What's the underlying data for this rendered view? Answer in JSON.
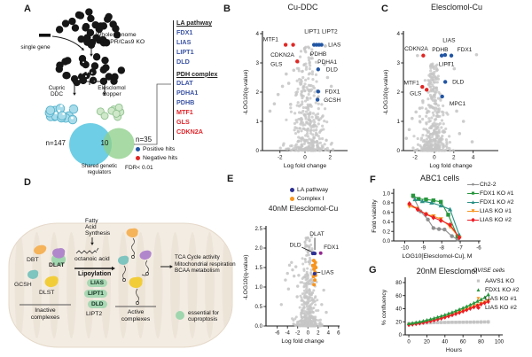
{
  "panelA": {
    "letter": "A",
    "single_gene": "single gene",
    "whole_genome_line1": "Whole genome",
    "whole_genome_line2": "CRISPR/Cas9 KO",
    "arm_left_line1": "Cupric",
    "arm_left_line2": "DDC",
    "arm_right_line1": "Elesclomol",
    "arm_right_line2": "Copper",
    "venn": {
      "left_count": "n=147",
      "overlap_count": "10",
      "right_count": "n=35",
      "caption_line1": "Shared genetic",
      "caption_line2": "regulators",
      "fdr": "FDR< 0.01",
      "left_color": "#5ec9e2",
      "right_color": "#8ed08a"
    },
    "gene_list": {
      "la_header": "LA pathway",
      "la_genes": [
        "FDX1",
        "LIAS",
        "LIPT1",
        "DLD"
      ],
      "pdh_header": "PDH complex",
      "pdh_genes": [
        "DLAT",
        "PDHA1",
        "PDHB"
      ],
      "negative_genes": [
        "MTF1",
        "GLS",
        "CDKN2A"
      ]
    },
    "hit_legend": {
      "positive": "Positive hits",
      "negative": "Negative hits",
      "positive_color": "#2155a3",
      "negative_color": "#e02724"
    }
  },
  "panelD": {
    "letter": "D",
    "complex_labels": {
      "dbt": "DBT",
      "dlat": "DLAT",
      "gcsh": "GCSH",
      "dlst": "DLST"
    },
    "fatty_line1": "Fatty",
    "fatty_line2": "Acid",
    "fatty_line3": "Synthesis",
    "octanoic": "octanoic acid",
    "lipoylation": "Lipoylation",
    "lipoyl_genes": [
      "LIAS",
      "LIPT1",
      "DLD"
    ],
    "lipt2": "LIPT2",
    "inactive_line1": "Inactive",
    "inactive_line2": "complexes",
    "active_line1": "Active",
    "active_line2": "complexes",
    "outcome_line1": "TCA Cycle activity",
    "outcome_line2": "Mitochondrial respiration",
    "outcome_line3": "BCAA metabolism",
    "legend_line1": "essential for",
    "legend_line2": "cuproptosis",
    "essential_color": "#9fd6ae"
  },
  "chart_data": [
    {
      "panel_letter": "B",
      "type": "scatter",
      "subtype": "volcano",
      "title": "Cu-DDC",
      "xlabel": "Log fold change",
      "ylabel": "-LOG10(q-value)",
      "xlim": [
        -3.4,
        3.4
      ],
      "ylim": [
        0,
        4
      ],
      "xticks": [
        -2,
        0,
        2
      ],
      "yticks": [
        0,
        1,
        2,
        3,
        4
      ],
      "colors": {
        "positive": "#2155a3",
        "negative": "#e02724",
        "background": "#c6c6c6"
      },
      "hits": [
        {
          "gene": "MTF1",
          "x": -1.55,
          "y": 3.62,
          "cat": "negative"
        },
        {
          "gene": "GLS",
          "x": -0.95,
          "y": 3.62,
          "cat": "negative"
        },
        {
          "gene": "CDKN2A",
          "x": -0.62,
          "y": 3.05,
          "cat": "negative"
        },
        {
          "gene": "LIPT1",
          "x": 0.72,
          "y": 3.62,
          "cat": "positive"
        },
        {
          "gene": "LIPT2",
          "x": 0.92,
          "y": 3.62,
          "cat": "positive"
        },
        {
          "gene": "PDHB",
          "x": 1.12,
          "y": 3.62,
          "cat": "positive"
        },
        {
          "gene": "PDHA1",
          "x": 1.32,
          "y": 3.62,
          "cat": "positive"
        },
        {
          "gene": "LIAS",
          "x": 1.62,
          "y": 3.58,
          "cat": "background"
        },
        {
          "gene": "DLD",
          "x": 1.05,
          "y": 2.78,
          "cat": "positive"
        },
        {
          "gene": "FDX1",
          "x": 1.05,
          "y": 2.02,
          "cat": "positive"
        },
        {
          "gene": "GCSH",
          "x": 1.0,
          "y": 1.74,
          "cat": "positive"
        }
      ],
      "labels": [
        {
          "text": "MTF1",
          "x": -3.35,
          "y": 3.8
        },
        {
          "text": "CDKN2A",
          "x": -2.75,
          "y": 3.28
        },
        {
          "text": "GLS",
          "x": -2.75,
          "y": 2.96
        },
        {
          "text": "LIPT1",
          "x": -0.05,
          "y": 4.08
        },
        {
          "text": "LIPT2",
          "x": 1.35,
          "y": 4.08
        },
        {
          "text": "LIAS",
          "x": 1.85,
          "y": 3.62
        },
        {
          "text": "PDHB",
          "x": 0.42,
          "y": 3.3
        },
        {
          "text": "PDHA1",
          "x": 1.0,
          "y": 3.03
        },
        {
          "text": "DLD",
          "x": 1.68,
          "y": 2.78
        },
        {
          "text": "FDX1",
          "x": 1.6,
          "y": 2.02
        },
        {
          "text": "GCSH",
          "x": 1.5,
          "y": 1.72
        }
      ],
      "extra_background": [
        [
          -2.15,
          1.92
        ],
        [
          -1.8,
          2.2
        ],
        [
          -2.45,
          1.6
        ],
        [
          -1.5,
          2.62
        ],
        [
          -1.15,
          1.58
        ],
        [
          -2.8,
          1.35
        ],
        [
          1.55,
          2.95
        ],
        [
          1.8,
          2.5
        ],
        [
          2.1,
          2.2
        ],
        [
          -0.9,
          2.75
        ],
        [
          -1.3,
          2.3
        ]
      ],
      "background_cloud": {
        "seed": 7,
        "count": 360,
        "x_spread": 1.05,
        "x_shift": 0.18,
        "y_pow": 2.1,
        "y_max": 3.55
      }
    },
    {
      "panel_letter": "C",
      "type": "scatter",
      "subtype": "volcano",
      "title": "Elesclomol-Cu",
      "xlabel": "Log fold change",
      "ylabel": "-LOG10(q-value)",
      "xlim": [
        -3.2,
        6.6
      ],
      "ylim": [
        0,
        4
      ],
      "xticks": [
        -2,
        0,
        2,
        4
      ],
      "yticks": [
        0,
        1,
        2,
        3,
        4
      ],
      "colors": {
        "positive": "#2155a3",
        "negative": "#e02724",
        "background": "#c6c6c6"
      },
      "hits": [
        {
          "gene": "CDKN2A",
          "x": -1.15,
          "y": 3.25,
          "cat": "negative"
        },
        {
          "gene": "PDHB",
          "x": 0.75,
          "y": 3.25,
          "cat": "positive"
        },
        {
          "gene": "LIAS",
          "x": 1.1,
          "y": 3.27,
          "cat": "positive"
        },
        {
          "gene": "FDX1",
          "x": 1.75,
          "y": 3.25,
          "cat": "positive"
        },
        {
          "gene": "MTF1",
          "x": -1.25,
          "y": 2.18,
          "cat": "negative"
        },
        {
          "gene": "GLS",
          "x": -0.8,
          "y": 2.08,
          "cat": "negative"
        },
        {
          "gene": "DLD",
          "x": 1.12,
          "y": 2.35,
          "cat": "positive"
        },
        {
          "gene": "MPC1",
          "x": 0.8,
          "y": 1.85,
          "cat": "positive"
        }
      ],
      "labels": [
        {
          "text": "CDKN2A",
          "x": -3.1,
          "y": 3.48
        },
        {
          "text": "LIAS",
          "x": 0.85,
          "y": 3.78
        },
        {
          "text": "PDHB",
          "x": -0.25,
          "y": 3.46
        },
        {
          "text": "FDX1",
          "x": 2.35,
          "y": 3.46
        },
        {
          "text": "LIPT1",
          "x": 0.45,
          "y": 2.95
        },
        {
          "text": "MTF1",
          "x": -3.15,
          "y": 2.32
        },
        {
          "text": "GLS",
          "x": -2.55,
          "y": 1.95
        },
        {
          "text": "DLD",
          "x": 1.85,
          "y": 2.35
        },
        {
          "text": "MPC1",
          "x": 1.55,
          "y": 1.6
        }
      ],
      "extra_background": [
        [
          -1.75,
          3.25
        ],
        [
          4.35,
          3.28
        ],
        [
          2.05,
          2.8
        ],
        [
          1.45,
          2.95
        ],
        [
          -1.9,
          1.32
        ],
        [
          -2.3,
          1.1
        ],
        [
          -2.6,
          0.72
        ],
        [
          3.0,
          1.0
        ],
        [
          2.6,
          0.58
        ],
        [
          -1.5,
          1.45
        ],
        [
          3.9,
          0.3
        ],
        [
          -2.9,
          0.42
        ],
        [
          2.3,
          1.35
        ],
        [
          -1.2,
          1.7
        ]
      ],
      "background_cloud": {
        "seed": 11,
        "count": 380,
        "x_spread": 1.0,
        "x_shift": -0.1,
        "y_pow": 2.4,
        "y_max": 3.0
      }
    },
    {
      "panel_letter": "E",
      "type": "scatter",
      "subtype": "volcano",
      "title": "40nM Elesclomol-Cu",
      "legend": [
        {
          "label": "LA pathway",
          "color": "#2e3192"
        },
        {
          "label": "Complex I",
          "color": "#f7941d"
        }
      ],
      "xlabel": "Log fold change",
      "ylabel": "-LOG10(q-value)",
      "xlim": [
        -8.2,
        6.2
      ],
      "ylim": [
        0,
        2.5
      ],
      "xticks": [
        -6,
        -4,
        -2,
        0,
        2,
        4,
        6
      ],
      "yticks": [
        0,
        0.5,
        1,
        1.5,
        2,
        2.5
      ],
      "ytick_labels": [
        "0.0",
        "0.5",
        "1.0",
        "1.5",
        "2.0",
        "2.5"
      ],
      "colors": {
        "la": "#2e3192",
        "complex1": "#f7941d",
        "fdx1": "#92278f",
        "background": "#c6c6c6"
      },
      "hits": [
        {
          "gene": "DLD",
          "x": 0.95,
          "y": 1.86,
          "cat": "la"
        },
        {
          "gene": "",
          "x": 1.15,
          "y": 1.87,
          "cat": "la"
        },
        {
          "gene": "DLAT",
          "x": 1.35,
          "y": 1.86,
          "cat": "la"
        },
        {
          "gene": "FDX1",
          "x": 2.5,
          "y": 1.87,
          "cat": "fdx1"
        },
        {
          "gene": "LIAS",
          "x": 1.3,
          "y": 1.34,
          "cat": "la"
        }
      ],
      "complex1_points": [
        [
          1.15,
          1.68
        ],
        [
          1.45,
          1.63
        ],
        [
          1.3,
          1.56
        ],
        [
          1.55,
          1.5
        ],
        [
          1.2,
          1.46
        ],
        [
          1.4,
          1.38
        ],
        [
          1.1,
          1.27
        ],
        [
          1.35,
          1.18
        ],
        [
          1.2,
          1.06
        ],
        [
          1.5,
          1.3
        ],
        [
          0.95,
          1.55
        ]
      ],
      "labels": [
        {
          "text": "DLD",
          "x": -3.6,
          "y": 2.08
        },
        {
          "text": "DLAT",
          "x": 0.35,
          "y": 2.36
        },
        {
          "text": "FDX1",
          "x": 3.1,
          "y": 2.02
        },
        {
          "text": "LIAS",
          "x": 2.6,
          "y": 1.38
        }
      ],
      "leader_lines": [
        [
          -1.2,
          2.02,
          0.75,
          1.9
        ],
        [
          1.35,
          2.26,
          1.35,
          1.95
        ],
        [
          2.45,
          1.38,
          1.5,
          1.36
        ]
      ],
      "extra_background": [
        [
          -3.6,
          1.56
        ],
        [
          -3.2,
          1.63
        ],
        [
          -3.0,
          1.44
        ],
        [
          -4.0,
          1.35
        ],
        [
          -2.7,
          1.28
        ],
        [
          -2.35,
          1.52
        ],
        [
          -4.4,
          1.18
        ],
        [
          -3.8,
          0.95
        ],
        [
          -2.0,
          1.02
        ],
        [
          -5.2,
          0.55
        ],
        [
          3.1,
          0.92
        ],
        [
          2.7,
          0.55
        ],
        [
          -1.8,
          1.3
        ],
        [
          -2.1,
          0.75
        ],
        [
          3.6,
          0.35
        ]
      ],
      "background_cloud": {
        "seed": 5,
        "count": 420,
        "x_spread": 1.5,
        "x_shift": 0.1,
        "y_pow": 2.8,
        "y_max": 2.3
      }
    },
    {
      "panel_letter": "F",
      "type": "line",
      "title": "ABC1 cells",
      "xlabel": "LOG10[Elesclomol-Cu], M",
      "ylabel": "Fold viability",
      "xlim": [
        -10.6,
        -5.9
      ],
      "ylim": [
        0,
        1.04
      ],
      "xticks": [
        -10,
        -9,
        -8,
        -7,
        -6
      ],
      "yticks": [
        0,
        0.2,
        0.4,
        0.6,
        0.8,
        1.0
      ],
      "ytick_labels": [
        "0.0",
        "0.2",
        "0.4",
        "0.6",
        "0.8",
        "1.0"
      ],
      "series": [
        {
          "name": "Ch2-2",
          "color": "#8f8f8f",
          "marker": "circle",
          "points": [
            [
              -9.55,
              0.93
            ],
            [
              -9.15,
              0.62
            ],
            [
              -8.75,
              0.45
            ],
            [
              -8.45,
              0.27
            ],
            [
              -8.15,
              0.25
            ],
            [
              -7.85,
              0.24
            ],
            [
              -7.45,
              0.1
            ],
            [
              -7.15,
              0.03
            ]
          ]
        },
        {
          "name": "FDX1 KO #1",
          "color": "#27963c",
          "marker": "square",
          "points": [
            [
              -9.55,
              0.95
            ],
            [
              -9.25,
              0.88
            ],
            [
              -8.85,
              0.87
            ],
            [
              -8.45,
              0.85
            ],
            [
              -8.05,
              0.82
            ],
            [
              -7.65,
              0.55
            ],
            [
              -7.15,
              0.1
            ]
          ]
        },
        {
          "name": "FDX1 KO #2",
          "color": "#2a9186",
          "marker": "triangle",
          "points": [
            [
              -9.45,
              0.87
            ],
            [
              -9.05,
              0.83
            ],
            [
              -8.55,
              0.8
            ],
            [
              -8.05,
              0.74
            ],
            [
              -7.55,
              0.66
            ],
            [
              -7.05,
              0.12
            ]
          ]
        },
        {
          "name": "LIAS KO #1",
          "color": "#f7941d",
          "marker": "triangle-down",
          "points": [
            [
              -9.75,
              0.73
            ],
            [
              -9.35,
              0.68
            ],
            [
              -8.85,
              0.56
            ],
            [
              -8.45,
              0.52
            ],
            [
              -8.05,
              0.46
            ],
            [
              -7.55,
              0.3
            ],
            [
              -7.05,
              0.07
            ]
          ]
        },
        {
          "name": "LIAS KO #2",
          "color": "#ed1c24",
          "marker": "diamond",
          "points": [
            [
              -9.75,
              0.78
            ],
            [
              -9.3,
              0.66
            ],
            [
              -8.85,
              0.56
            ],
            [
              -8.45,
              0.49
            ],
            [
              -8.05,
              0.43
            ],
            [
              -7.55,
              0.34
            ],
            [
              -7.05,
              0.07
            ]
          ]
        }
      ]
    },
    {
      "panel_letter": "G",
      "type": "line",
      "title": "20nM Elesclomol",
      "legend_title": "OVISE cells",
      "xlabel": "Hours",
      "ylabel": "% confluency",
      "xlim": [
        -4,
        104
      ],
      "ylim": [
        0,
        84
      ],
      "xticks": [
        0,
        20,
        40,
        60,
        80,
        100
      ],
      "yticks": [
        0,
        20,
        40,
        60,
        80
      ],
      "error_bar": 1.8,
      "hours": [
        0,
        4,
        8,
        12,
        16,
        20,
        24,
        28,
        32,
        36,
        40,
        44,
        48,
        52,
        56,
        60,
        64,
        68,
        72,
        76,
        80,
        84,
        88
      ],
      "series": [
        {
          "name": "AAVS1 KO",
          "color": "#c4c4c4",
          "marker": "square",
          "y": [
            17,
            17.3,
            17.6,
            17.9,
            18.1,
            18.3,
            18.5,
            18.7,
            18.8,
            18.9,
            19,
            19.1,
            19.2,
            19.2,
            19.3,
            19.3,
            19.4,
            19.4,
            19.5,
            19.5,
            19.6,
            19.7,
            19.8
          ]
        },
        {
          "name": "LIAS KO #1",
          "color": "#f7941d",
          "marker": "triangle-down",
          "y": [
            15.8,
            16.5,
            17.3,
            18.2,
            19.2,
            20.3,
            21.5,
            22.8,
            24.2,
            25.7,
            27.3,
            29,
            30.8,
            32.7,
            34.7,
            36.8,
            39,
            41.2,
            43.5,
            45.8,
            48.2,
            50.3,
            52.3
          ]
        },
        {
          "name": "LIAS KO #2",
          "color": "#ed1c24",
          "marker": "diamond",
          "y": [
            15.2,
            15.9,
            16.7,
            17.6,
            18.6,
            19.7,
            20.9,
            22.2,
            23.6,
            25.1,
            26.7,
            28.4,
            30.2,
            32,
            33.9,
            35.9,
            38,
            40.1,
            42.3,
            44.5,
            46.7,
            48.8,
            50.6
          ]
        },
        {
          "name": "FDX1 KO #2",
          "color": "#27963c",
          "marker": "triangle",
          "y": [
            17,
            17.9,
            18.9,
            20,
            21.2,
            22.5,
            23.9,
            25.4,
            27,
            28.7,
            30.5,
            32.4,
            34.4,
            36.5,
            38.7,
            41,
            43.4,
            45.9,
            48.5,
            51.2,
            54,
            57,
            61.5
          ]
        }
      ],
      "legend_order": [
        0,
        3,
        1,
        2
      ]
    }
  ]
}
